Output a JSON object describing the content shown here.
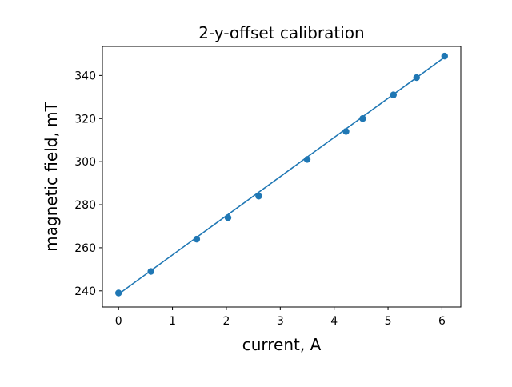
{
  "chart_data": {
    "type": "scatter",
    "title": "2-y-offset calibration",
    "xlabel": "current, A",
    "ylabel": "magnetic field, mT",
    "xlim": [
      -0.3,
      6.35
    ],
    "ylim": [
      232.5,
      353.5
    ],
    "xticks": [
      0,
      1,
      2,
      3,
      4,
      5,
      6
    ],
    "yticks": [
      240,
      260,
      280,
      300,
      320,
      340
    ],
    "grid": false,
    "legend": "none",
    "series": [
      {
        "style": "markers",
        "color": "#1f77b4",
        "x": [
          0.0,
          0.6,
          1.45,
          2.03,
          2.6,
          3.5,
          4.22,
          4.53,
          5.1,
          5.53,
          6.05
        ],
        "y": [
          239,
          249,
          264,
          274,
          284,
          301,
          314,
          320,
          331,
          339,
          349
        ]
      },
      {
        "style": "line",
        "color": "#1f77b4",
        "x": [
          0.0,
          6.05
        ],
        "y": [
          238.5,
          348.5
        ]
      }
    ]
  }
}
